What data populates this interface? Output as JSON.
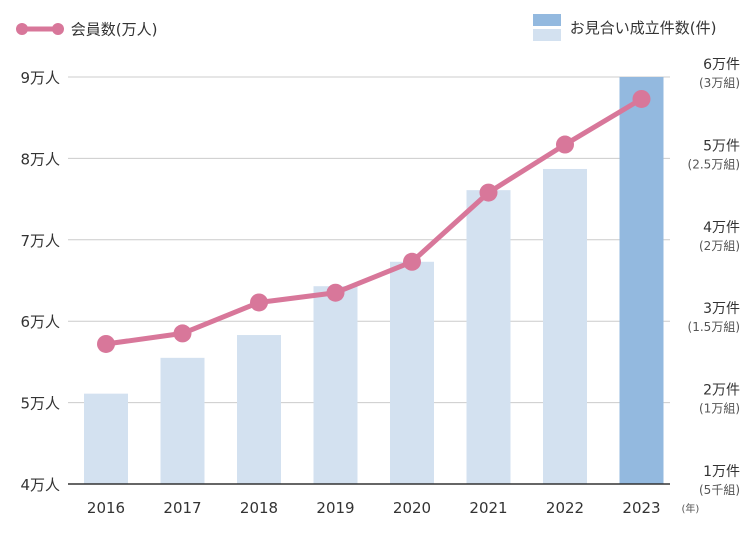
{
  "legend": {
    "line_label": "会員数(万人)",
    "bar_label": "お見合い成立件数(件)"
  },
  "colors": {
    "line": "#d8779a",
    "bar_light": "#d3e1f0",
    "bar_highlight": "#93b9df",
    "grid": "#cccccc",
    "axis": "#333333"
  },
  "chart_data": {
    "type": "bar",
    "categories": [
      "2016",
      "2017",
      "2018",
      "2019",
      "2020",
      "2021",
      "2022",
      "2023"
    ],
    "x_unit_label": "(年)",
    "left_axis": {
      "ticks": [
        "4万人",
        "5万人",
        "6万人",
        "7万人",
        "8万人",
        "9万人"
      ],
      "range": [
        40000,
        90000
      ]
    },
    "right_axis": {
      "ticks": [
        {
          "label": "1万件",
          "sub": "(5千組)"
        },
        {
          "label": "2万件",
          "sub": "(1万組)"
        },
        {
          "label": "3万件",
          "sub": "(1.5万組)"
        },
        {
          "label": "4万件",
          "sub": "(2万組)"
        },
        {
          "label": "5万件",
          "sub": "(2.5万組)"
        },
        {
          "label": "6万件",
          "sub": "(3万組)"
        }
      ],
      "range": [
        10000,
        60000
      ]
    },
    "series": [
      {
        "name": "お見合い成立件数(件)",
        "type": "bar",
        "axis": "right",
        "values": [
          21100,
          25500,
          28300,
          34300,
          37300,
          46100,
          48700,
          60000
        ],
        "highlight_index": 7
      },
      {
        "name": "会員数(万人)",
        "type": "line",
        "axis": "left",
        "values": [
          57200,
          58500,
          62300,
          63500,
          67300,
          75800,
          81700,
          87300
        ]
      }
    ],
    "grid": true
  }
}
